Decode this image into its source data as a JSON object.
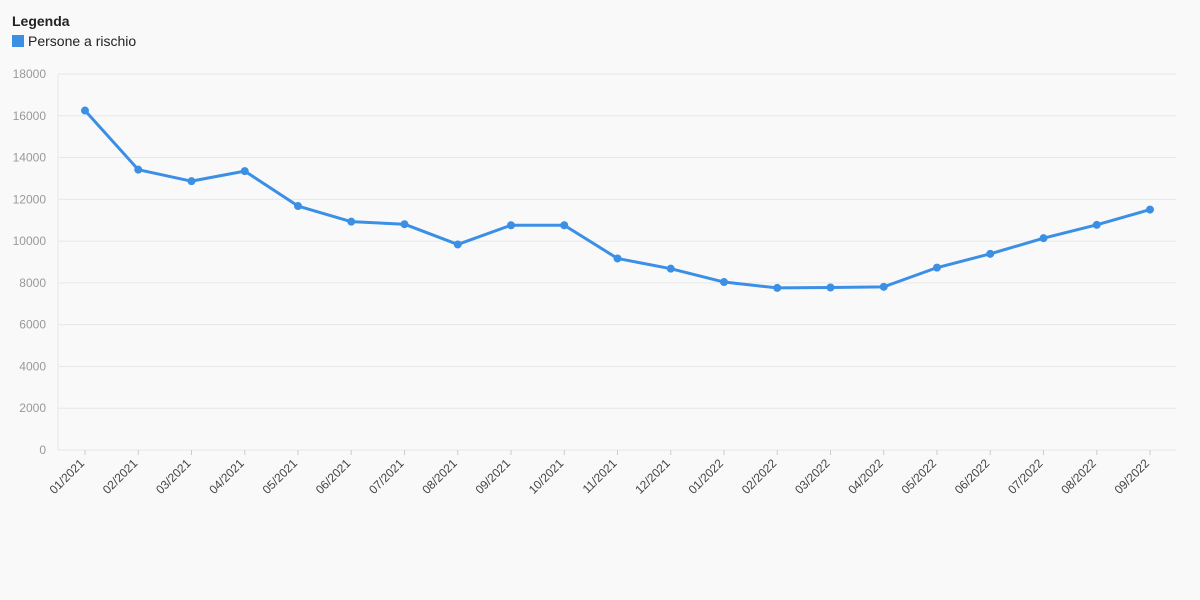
{
  "legend": {
    "title": "Legenda",
    "items": [
      {
        "label": "Persone a rischio",
        "color": "#3b8fe5"
      }
    ]
  },
  "chart_data": {
    "type": "line",
    "title": "",
    "xlabel": "",
    "ylabel": "",
    "ylim": [
      0,
      18000
    ],
    "yticks": [
      0,
      2000,
      4000,
      6000,
      8000,
      10000,
      12000,
      14000,
      16000,
      18000
    ],
    "grid": true,
    "legend_position": "top-left",
    "categories": [
      "01/2021",
      "02/2021",
      "03/2021",
      "04/2021",
      "05/2021",
      "06/2021",
      "07/2021",
      "08/2021",
      "09/2021",
      "10/2021",
      "11/2021",
      "12/2021",
      "01/2022",
      "02/2022",
      "03/2022",
      "04/2022",
      "05/2022",
      "06/2022",
      "07/2022",
      "08/2022",
      "09/2022"
    ],
    "series": [
      {
        "name": "Persone a rischio",
        "color": "#3b8fe5",
        "values": [
          16250,
          13420,
          12870,
          13350,
          11680,
          10930,
          10810,
          9840,
          10760,
          10760,
          9170,
          8680,
          8040,
          7760,
          7780,
          7810,
          8730,
          9390,
          10140,
          10780,
          11510
        ]
      }
    ]
  }
}
